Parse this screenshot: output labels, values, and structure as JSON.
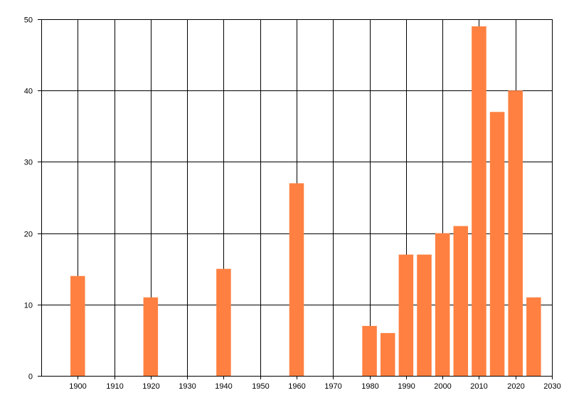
{
  "chart_data": {
    "type": "bar",
    "title": "",
    "xlabel": "",
    "ylabel": "",
    "xlim": [
      1890,
      2030
    ],
    "ylim": [
      0,
      50
    ],
    "grid": true,
    "bar_color": "#FF8040",
    "grid_color": "#000000",
    "x_ticks": [
      1900,
      1910,
      1920,
      1930,
      1940,
      1950,
      1960,
      1970,
      1980,
      1990,
      2000,
      2010,
      2020,
      2030
    ],
    "y_ticks": [
      0,
      10,
      20,
      30,
      40,
      50
    ],
    "x": [
      1900,
      1920,
      1940,
      1960,
      1980,
      1985,
      1990,
      1995,
      2000,
      2005,
      2010,
      2015,
      2020,
      2025
    ],
    "values": [
      14,
      11,
      15,
      27,
      7,
      6,
      17,
      17,
      20,
      21,
      49,
      37,
      40,
      11
    ]
  }
}
